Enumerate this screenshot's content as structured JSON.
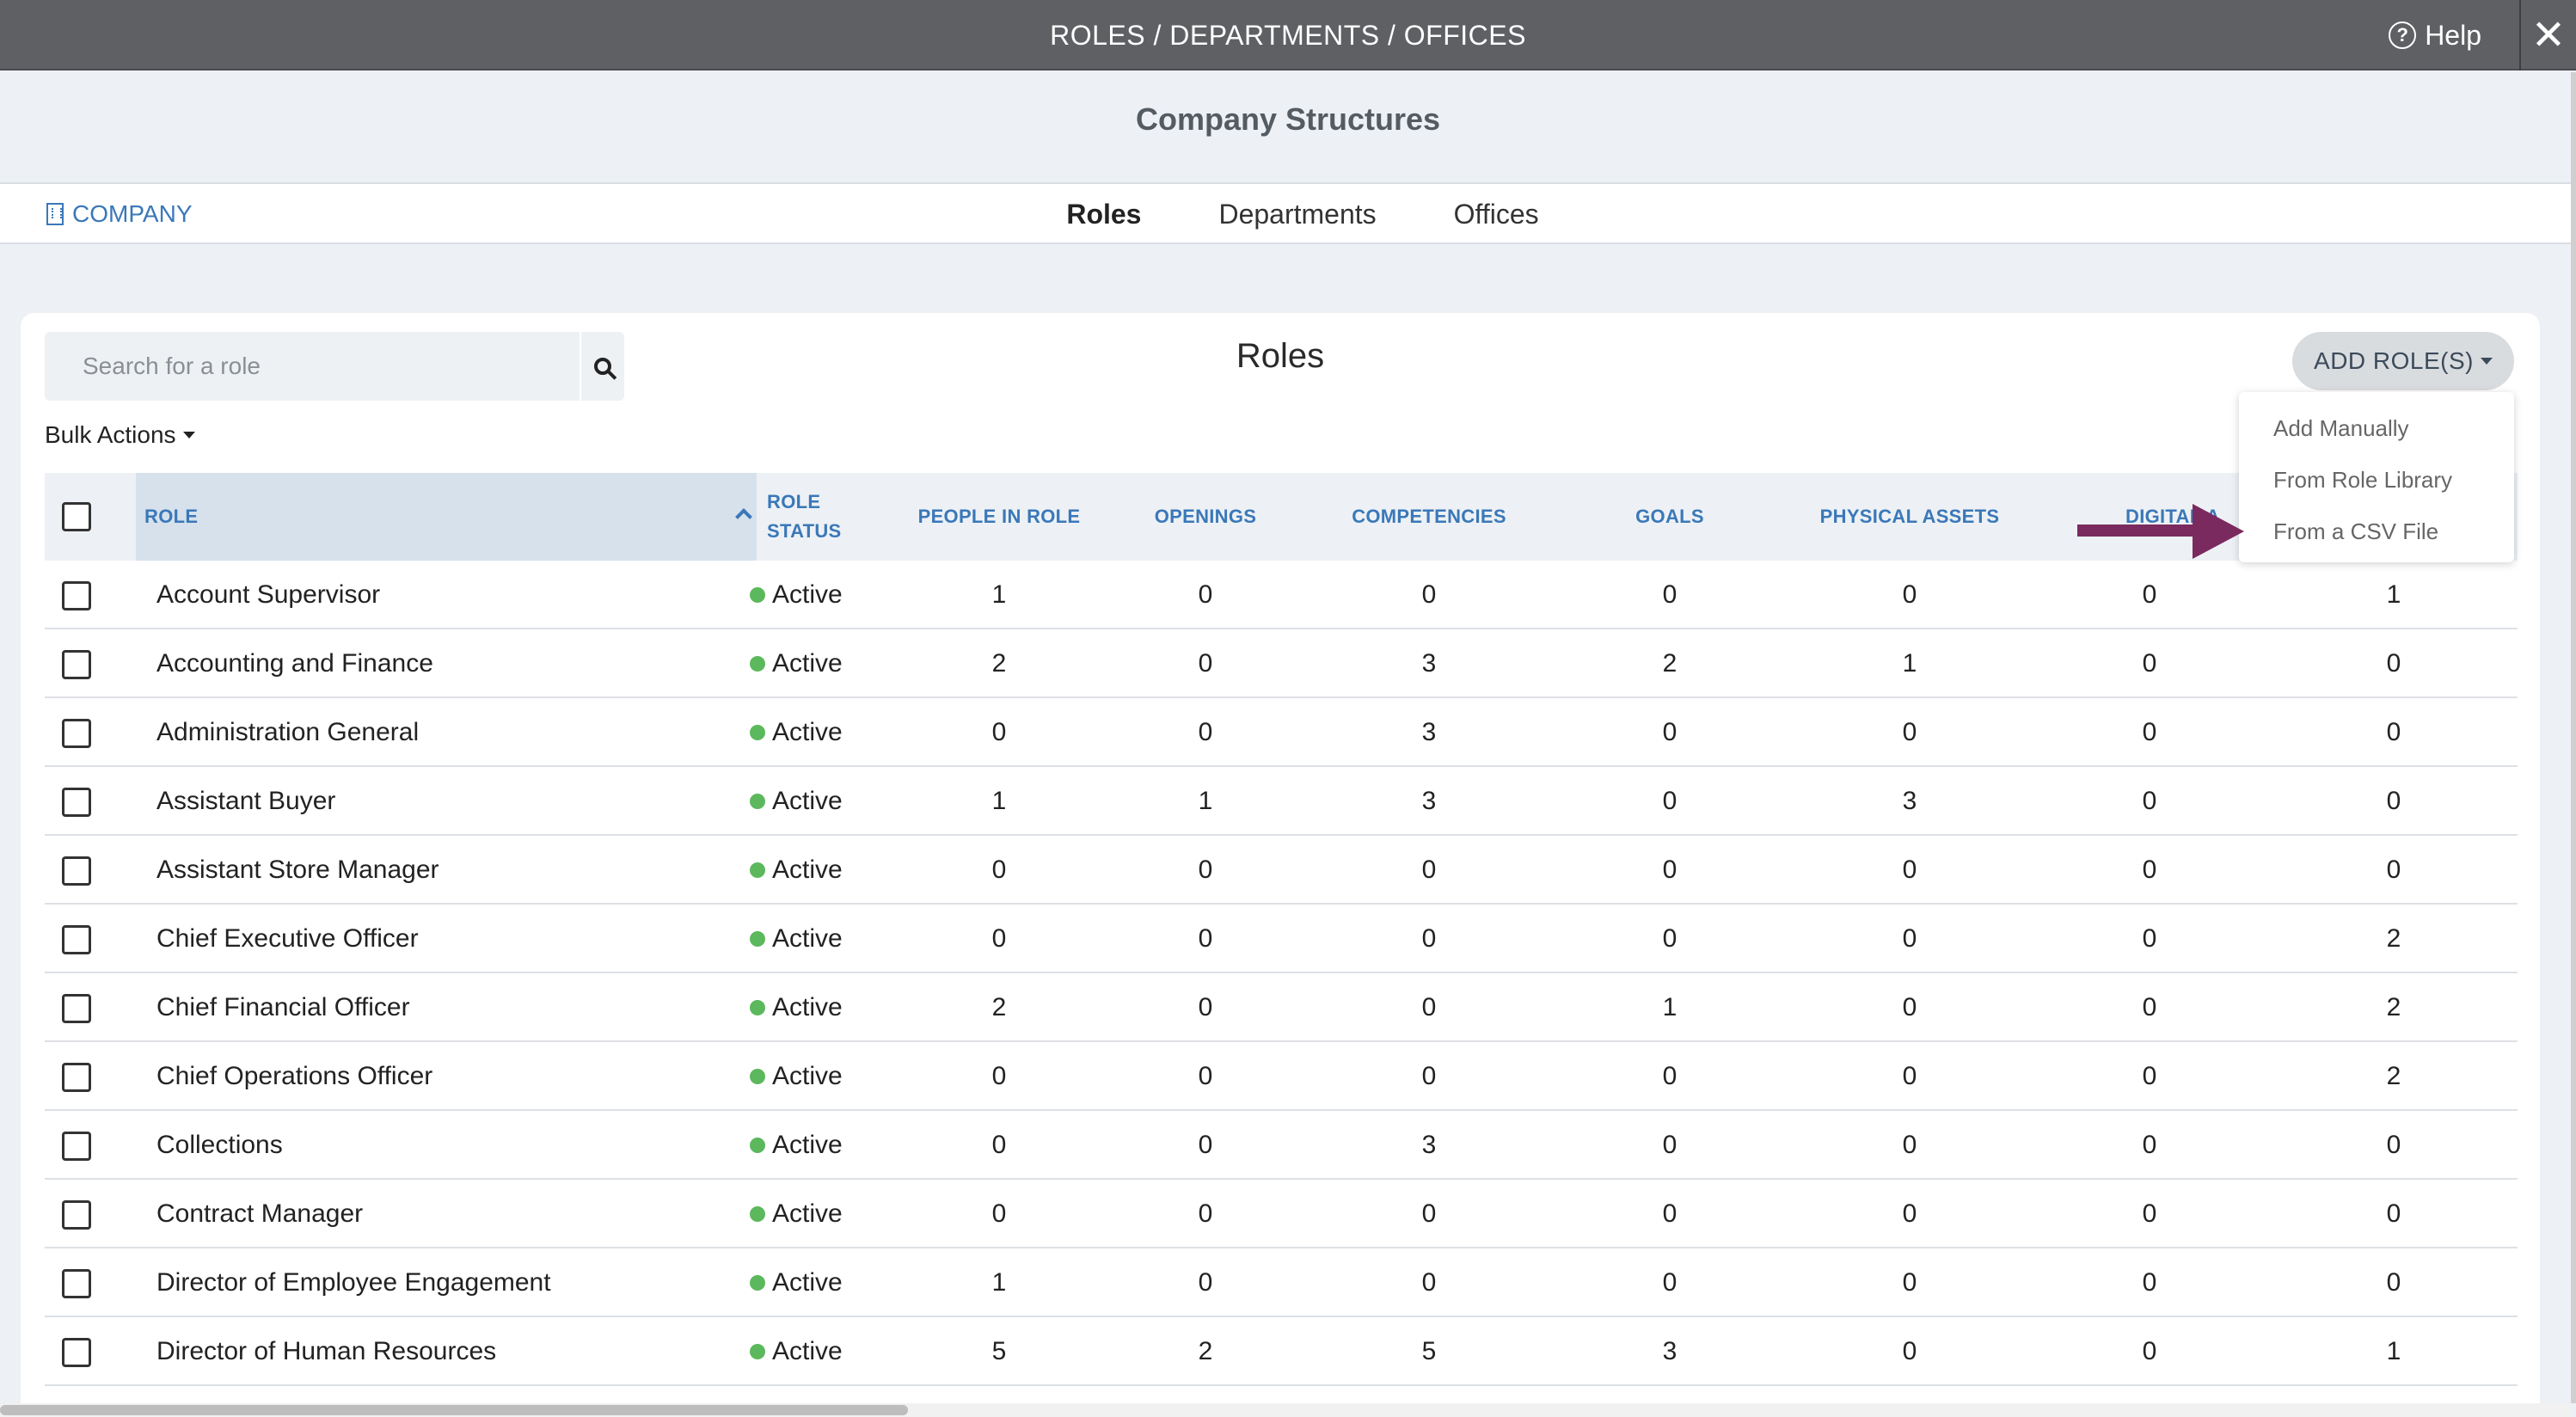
{
  "window": {
    "title": "ROLES / DEPARTMENTS / OFFICES",
    "help_label": "Help",
    "close_label": "✕"
  },
  "page_title": "Company Structures",
  "subnav": {
    "company_link": "COMPANY",
    "tabs": [
      {
        "label": "Roles",
        "active": true
      },
      {
        "label": "Departments",
        "active": false
      },
      {
        "label": "Offices",
        "active": false
      }
    ]
  },
  "search": {
    "placeholder": "Search for a role",
    "value": ""
  },
  "section_heading": "Roles",
  "bulk_actions_label": "Bulk Actions",
  "add_button_label": "ADD ROLE(S)",
  "add_menu": {
    "items": [
      "Add Manually",
      "From Role Library",
      "From a CSV File"
    ]
  },
  "table": {
    "headers": {
      "role": "ROLE",
      "status_line1": "ROLE",
      "status_line2": "STATUS",
      "people": "PEOPLE IN ROLE",
      "openings": "OPENINGS",
      "competencies": "COMPETENCIES",
      "goals": "GOALS",
      "physical_assets": "PHYSICAL ASSETS",
      "digital_assets": "DIGITAL A"
    },
    "rows": [
      {
        "role": "Account Supervisor",
        "status": "Active",
        "people": "1",
        "openings": "0",
        "competencies": "0",
        "goals": "0",
        "physical": "0",
        "digital": "0",
        "last": "1"
      },
      {
        "role": "Accounting and Finance",
        "status": "Active",
        "people": "2",
        "openings": "0",
        "competencies": "3",
        "goals": "2",
        "physical": "1",
        "digital": "0",
        "last": "0"
      },
      {
        "role": "Administration General",
        "status": "Active",
        "people": "0",
        "openings": "0",
        "competencies": "3",
        "goals": "0",
        "physical": "0",
        "digital": "0",
        "last": "0"
      },
      {
        "role": "Assistant Buyer",
        "status": "Active",
        "people": "1",
        "openings": "1",
        "competencies": "3",
        "goals": "0",
        "physical": "3",
        "digital": "0",
        "last": "0"
      },
      {
        "role": "Assistant Store Manager",
        "status": "Active",
        "people": "0",
        "openings": "0",
        "competencies": "0",
        "goals": "0",
        "physical": "0",
        "digital": "0",
        "last": "0"
      },
      {
        "role": "Chief Executive Officer",
        "status": "Active",
        "people": "0",
        "openings": "0",
        "competencies": "0",
        "goals": "0",
        "physical": "0",
        "digital": "0",
        "last": "2"
      },
      {
        "role": "Chief Financial Officer",
        "status": "Active",
        "people": "2",
        "openings": "0",
        "competencies": "0",
        "goals": "1",
        "physical": "0",
        "digital": "0",
        "last": "2"
      },
      {
        "role": "Chief Operations Officer",
        "status": "Active",
        "people": "0",
        "openings": "0",
        "competencies": "0",
        "goals": "0",
        "physical": "0",
        "digital": "0",
        "last": "2"
      },
      {
        "role": "Collections",
        "status": "Active",
        "people": "0",
        "openings": "0",
        "competencies": "3",
        "goals": "0",
        "physical": "0",
        "digital": "0",
        "last": "0"
      },
      {
        "role": "Contract Manager",
        "status": "Active",
        "people": "0",
        "openings": "0",
        "competencies": "0",
        "goals": "0",
        "physical": "0",
        "digital": "0",
        "last": "0"
      },
      {
        "role": "Director of Employee Engagement",
        "status": "Active",
        "people": "1",
        "openings": "0",
        "competencies": "0",
        "goals": "0",
        "physical": "0",
        "digital": "0",
        "last": "0"
      },
      {
        "role": "Director of Human Resources",
        "status": "Active",
        "people": "5",
        "openings": "2",
        "competencies": "5",
        "goals": "3",
        "physical": "0",
        "digital": "0",
        "last": "1"
      }
    ]
  },
  "colors": {
    "accent": "#3a78b8",
    "active_dot": "#5cb85c",
    "arrow": "#7a2a5e",
    "topbar": "#5e6063"
  }
}
